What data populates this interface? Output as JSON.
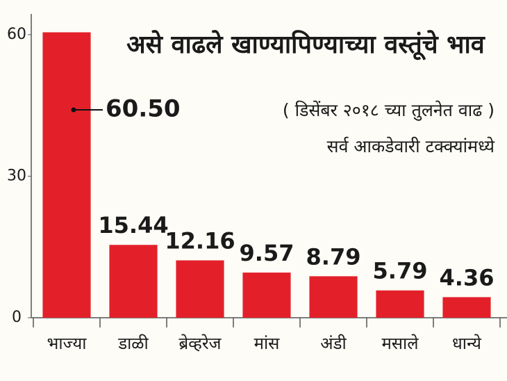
{
  "chart_data": {
    "type": "bar",
    "title": "असे वाढले खाण्यापिण्याच्या वस्तूंचे भाव",
    "subtitle": "( डिसेंबर २०१८ च्या तुलनेत वाढ )",
    "note": "सर्व आकडेवारी टक्क्यांमध्ये",
    "categories": [
      "भाज्या",
      "डाळी",
      "ब्रेव्हरेज",
      "मांस",
      "अंडी",
      "मसाले",
      "धान्ये"
    ],
    "values": [
      60.5,
      15.44,
      12.16,
      9.57,
      8.79,
      5.79,
      4.36
    ],
    "value_labels": [
      "60.50",
      "15.44",
      "12.16",
      "9.57",
      "8.79",
      "5.79",
      "4.36"
    ],
    "color": "#e3202a",
    "ylim": [
      0,
      64.4
    ],
    "yticks": [
      0,
      30,
      60
    ]
  }
}
